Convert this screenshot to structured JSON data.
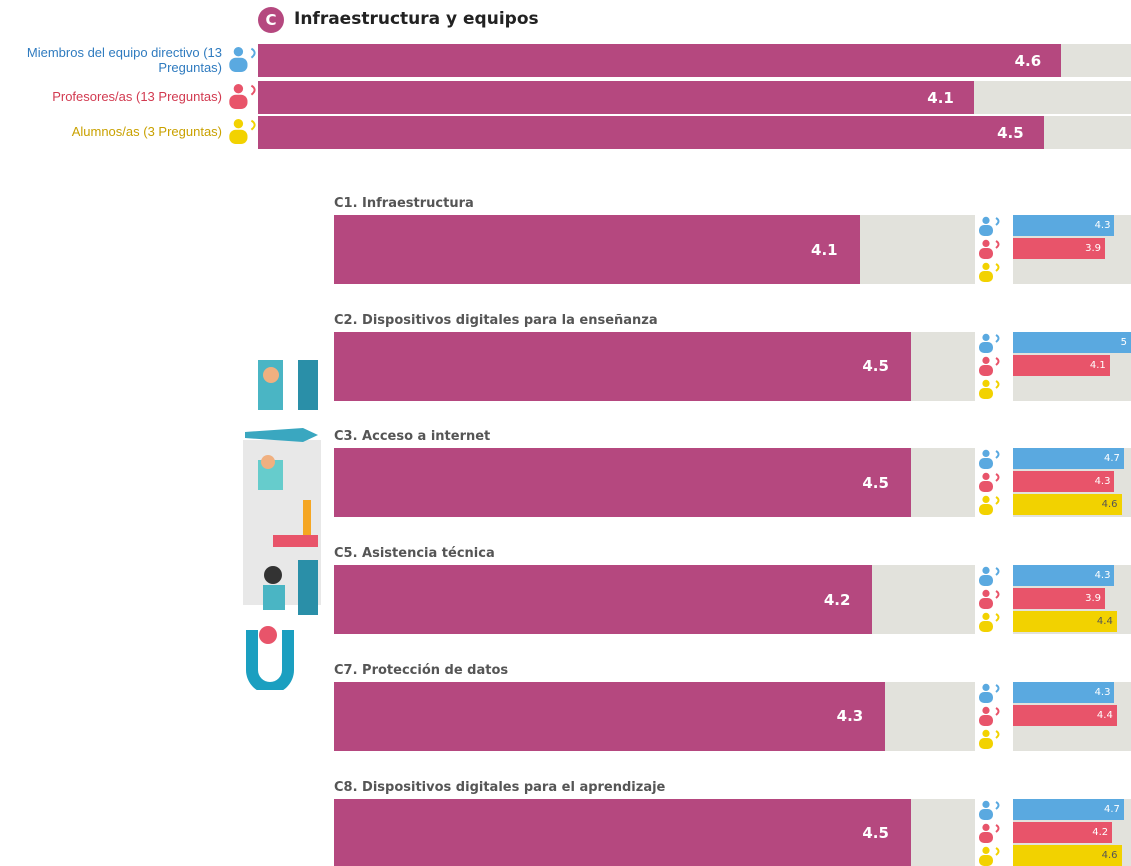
{
  "chart_data": [
    {
      "type": "summary",
      "badge": "C",
      "title": "Infraestructura y equipos",
      "categories": [
        "Miembros del equipo directivo (13 Preguntas)",
        "Profesores/as (13 Preguntas)",
        "Alumnos/as (3 Preguntas)"
      ],
      "values": [
        4.6,
        4.1,
        4.5
      ],
      "xlim": [
        0,
        5
      ],
      "color": "#b5487f",
      "label_colors": [
        "#2f7bbf",
        "#d23a50",
        "#c9a100"
      ],
      "icon_colors": [
        "#5aa9e0",
        "#e8546a",
        "#f2d200"
      ]
    },
    {
      "type": "subarea",
      "title": "C1. Infraestructura",
      "value": 4.1,
      "group_values": [
        4.3,
        3.9,
        null
      ],
      "xlim": [
        0,
        5
      ]
    },
    {
      "type": "subarea",
      "title": "C2. Dispositivos digitales para la enseñanza",
      "value": 4.5,
      "group_values": [
        5,
        4.1,
        null
      ],
      "xlim": [
        0,
        5
      ]
    },
    {
      "type": "subarea",
      "title": "C3. Acceso a internet",
      "value": 4.5,
      "group_values": [
        4.7,
        4.3,
        4.6
      ],
      "xlim": [
        0,
        5
      ]
    },
    {
      "type": "subarea",
      "title": "C5. Asistencia técnica",
      "value": 4.2,
      "group_values": [
        4.3,
        3.9,
        4.4
      ],
      "xlim": [
        0,
        5
      ]
    },
    {
      "type": "subarea",
      "title": "C7. Protección de datos",
      "value": 4.3,
      "group_values": [
        4.3,
        4.4,
        null
      ],
      "xlim": [
        0,
        5
      ]
    },
    {
      "type": "subarea",
      "title": "C8. Dispositivos digitales para el aprendizaje",
      "value": 4.5,
      "group_values": [
        4.7,
        4.2,
        4.6
      ],
      "xlim": [
        0,
        5
      ]
    }
  ]
}
